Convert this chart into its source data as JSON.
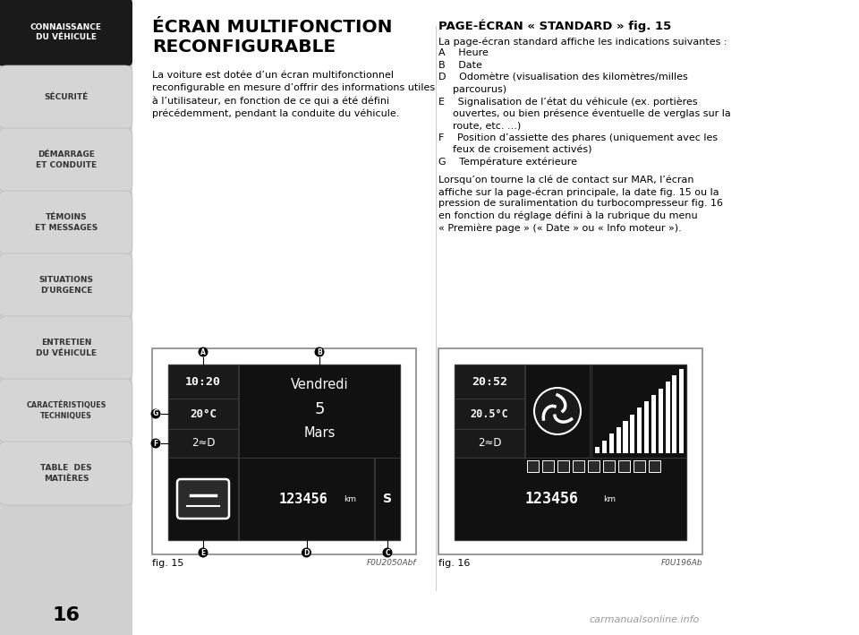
{
  "page_bg": "#e8e8e8",
  "content_bg": "#ffffff",
  "sidebar_items": [
    {
      "text": "CONNAISSANCE\nDU VÉHICULE",
      "bg": "#1a1a1a",
      "fg": "#ffffff",
      "active": true
    },
    {
      "text": "SÉCURITÉ",
      "bg": "#d5d5d5",
      "fg": "#333333",
      "active": false
    },
    {
      "text": "DÉMARRAGE\nET CONDUITE",
      "bg": "#d5d5d5",
      "fg": "#333333",
      "active": false
    },
    {
      "text": "TÉMOINS\nET MESSAGES",
      "bg": "#d5d5d5",
      "fg": "#333333",
      "active": false
    },
    {
      "text": "SITUATIONS\nD'URGENCE",
      "bg": "#d5d5d5",
      "fg": "#333333",
      "active": false
    },
    {
      "text": "ENTRETIEN\nDU VÉHICULE",
      "bg": "#d5d5d5",
      "fg": "#333333",
      "active": false
    },
    {
      "text": "CARACTÉRISTIQUES\nTECHNIQUES",
      "bg": "#d5d5d5",
      "fg": "#333333",
      "active": false
    },
    {
      "text": "TABLE  DES\nMATIÈRES",
      "bg": "#d5d5d5",
      "fg": "#333333",
      "active": false
    }
  ],
  "page_number": "16",
  "title_line1": "ÉCRAN MULTIFONCTION",
  "title_line2": "RECONFIGURABLE",
  "left_body": "La voiture est dotée d’un écran multifonctionnel\nreconfigurable en mesure d’offrir des informations utiles\nà l’utilisateur, en fonction de ce qui a été défini\nprécédemment, pendant la conduite du véhicule.",
  "right_title": "PAGE-ÉCRAN « STANDARD » fig. 15",
  "right_body_items": [
    {
      "indent": false,
      "text": "La page-écran standard affiche les indications suivantes :"
    },
    {
      "indent": false,
      "text": "A  Heure"
    },
    {
      "indent": false,
      "text": "B  Date"
    },
    {
      "indent": false,
      "text": "D  Odomètre (visualisation des kilomètres/milles"
    },
    {
      "indent": true,
      "text": "parcourus)"
    },
    {
      "indent": false,
      "text": "E  Signalisation de l’état du véhicule (ex. portières"
    },
    {
      "indent": true,
      "text": "ouvertes, ou bien présence éventuelle de verglas sur la"
    },
    {
      "indent": true,
      "text": "route, etc. ...)"
    },
    {
      "indent": false,
      "text": "F  Position d’assiette des phares (uniquement avec les"
    },
    {
      "indent": true,
      "text": "feux de croisement activés)"
    },
    {
      "indent": false,
      "text": "G  Température extérieure"
    },
    {
      "indent": false,
      "text": ""
    },
    {
      "indent": false,
      "text": "Lorsqu’on tourne la clé de contact sur MAR, l’écran"
    },
    {
      "indent": false,
      "text": "affiche sur la page-écran principale, la date fig. 15 ou la"
    },
    {
      "indent": false,
      "text": "pression de suralimentation du turbocompresseur fig. 16"
    },
    {
      "indent": false,
      "text": "en fonction du réglage défini à la rubrique du menu"
    },
    {
      "indent": false,
      "text": "« Première page » (« Date » ou « Info moteur »)."
    }
  ],
  "fig15_label": "fig. 15",
  "fig15_code": "F0U2050Abf",
  "fig16_label": "fig. 16",
  "fig16_code": "F0U196Ab",
  "watermark": "carmanualsonline.info"
}
